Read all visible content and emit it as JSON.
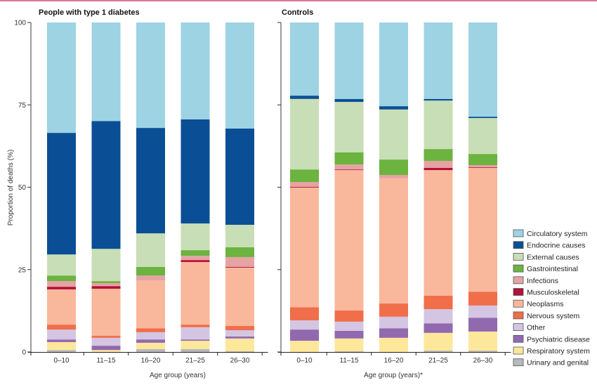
{
  "chart_data": [
    {
      "type": "bar",
      "stacked": true,
      "title": "People with type 1 diabetes",
      "xlabel": "Age group (years)",
      "ylabel": "Proportion of deaths (%)",
      "ylim": [
        0,
        100
      ],
      "yticks": [
        0,
        25,
        50,
        75,
        100
      ],
      "categories": [
        "0–10",
        "11–15",
        "16–20",
        "21–25",
        "26–30"
      ],
      "series": [
        {
          "name": "Urinary and genital",
          "values": [
            0.6,
            0.0,
            0.9,
            0.9,
            0.2
          ]
        },
        {
          "name": "Respiratory system",
          "values": [
            2.4,
            0.6,
            1.9,
            2.5,
            3.9
          ]
        },
        {
          "name": "Psychiatric disease",
          "values": [
            0.8,
            1.3,
            1.0,
            0.4,
            0.6
          ]
        },
        {
          "name": "Other",
          "values": [
            3.0,
            2.4,
            2.2,
            3.7,
            1.9
          ]
        },
        {
          "name": "Nervous system",
          "values": [
            1.5,
            0.6,
            1.2,
            0.8,
            1.3
          ]
        },
        {
          "name": "Neoplasms",
          "values": [
            10.7,
            14.3,
            14.5,
            19.0,
            17.7
          ]
        },
        {
          "name": "Musculoskeletal",
          "values": [
            0.8,
            0.8,
            0.0,
            0.6,
            0.2
          ]
        },
        {
          "name": "Infections",
          "values": [
            1.7,
            0.9,
            1.5,
            1.3,
            3.0
          ]
        },
        {
          "name": "Gastrointestinal",
          "values": [
            1.7,
            0.6,
            2.6,
            1.7,
            3.0
          ]
        },
        {
          "name": "External causes",
          "values": [
            6.4,
            9.8,
            10.2,
            8.1,
            6.8
          ]
        },
        {
          "name": "Endocrine causes",
          "values": [
            36.9,
            38.8,
            32.0,
            31.6,
            29.2
          ]
        },
        {
          "name": "Circulatory system",
          "values": [
            33.5,
            29.9,
            32.0,
            29.4,
            32.2
          ]
        }
      ]
    },
    {
      "type": "bar",
      "stacked": true,
      "title": "Controls",
      "xlabel": "Age group (years)*",
      "ylabel": "",
      "ylim": [
        0,
        100
      ],
      "yticks": [
        0,
        25,
        50,
        75,
        100
      ],
      "categories": [
        "0–10",
        "11–15",
        "16–20",
        "21–25",
        "26–30"
      ],
      "series": [
        {
          "name": "Urinary and genital",
          "values": [
            0.0,
            0.2,
            0.0,
            0.4,
            0.4
          ]
        },
        {
          "name": "Respiratory system",
          "values": [
            3.4,
            3.9,
            4.3,
            5.4,
            5.8
          ]
        },
        {
          "name": "Psychiatric disease",
          "values": [
            3.4,
            2.3,
            2.9,
            2.9,
            4.2
          ]
        },
        {
          "name": "Other",
          "values": [
            2.8,
            2.8,
            3.5,
            4.3,
            3.7
          ]
        },
        {
          "name": "Nervous system",
          "values": [
            4.0,
            3.4,
            4.0,
            4.1,
            4.2
          ]
        },
        {
          "name": "Neoplasms",
          "values": [
            36.3,
            42.6,
            38.0,
            38.1,
            37.6
          ]
        },
        {
          "name": "Musculoskeletal",
          "values": [
            0.2,
            0.2,
            0.0,
            0.7,
            0.2
          ]
        },
        {
          "name": "Infections",
          "values": [
            1.5,
            1.5,
            1.0,
            2.1,
            0.6
          ]
        },
        {
          "name": "Gastrointestinal",
          "values": [
            3.8,
            3.7,
            4.7,
            3.6,
            3.4
          ]
        },
        {
          "name": "External causes",
          "values": [
            21.4,
            15.3,
            15.2,
            14.7,
            10.9
          ]
        },
        {
          "name": "Endocrine causes",
          "values": [
            1.0,
            0.9,
            1.0,
            0.5,
            0.4
          ]
        },
        {
          "name": "Circulatory system",
          "values": [
            22.2,
            23.2,
            25.4,
            23.2,
            28.6
          ]
        }
      ]
    }
  ],
  "legend": {
    "placement": "right",
    "items": [
      {
        "name": "Circulatory system",
        "color": "#9dd3e3"
      },
      {
        "name": "Endocrine causes",
        "color": "#0a4f96"
      },
      {
        "name": "External causes",
        "color": "#c8deb6"
      },
      {
        "name": "Gastrointestinal",
        "color": "#6cb33f"
      },
      {
        "name": "Infections",
        "color": "#e5a3a3"
      },
      {
        "name": "Musculoskeletal",
        "color": "#b3103a"
      },
      {
        "name": "Neoplasms",
        "color": "#f9b79b"
      },
      {
        "name": "Nervous system",
        "color": "#f06e4a"
      },
      {
        "name": "Other",
        "color": "#d4c5e2"
      },
      {
        "name": "Psychiatric disease",
        "color": "#9169ae"
      },
      {
        "name": "Respiratory system",
        "color": "#fde79a"
      },
      {
        "name": "Urinary and genital",
        "color": "#b9b9b9"
      }
    ]
  },
  "colors": {
    "accent_bar": "#d9769a",
    "axis": "#7a7a7a"
  }
}
